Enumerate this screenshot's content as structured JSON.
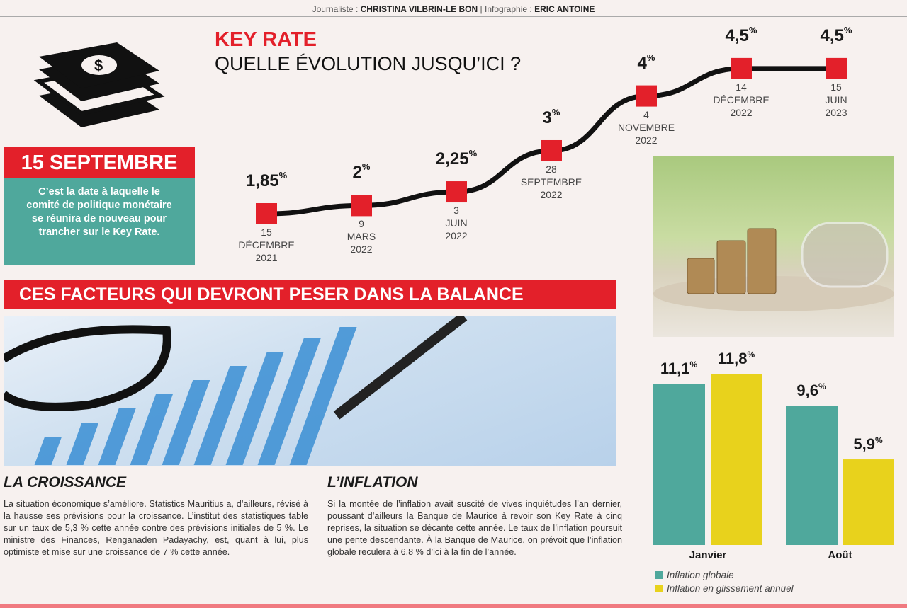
{
  "credits": {
    "journalist_label": "Journaliste :",
    "journalist": "CHRISTINA VILBRIN-LE BON",
    "sep": "|",
    "infographie_label": "Infographie :",
    "infographie": "ERIC ANTOINE"
  },
  "key_rate": {
    "title": "KEY RATE",
    "subtitle": "QUELLE ÉVOLUTION JUSQU’ICI ?"
  },
  "callout": {
    "heading": "15 SEPTEMBRE",
    "text": "C’est la date à laquelle le comité de politique monétaire se réunira de nouveau pour trancher sur le Key Rate."
  },
  "factors_banner": "CES FACTEURS QUI DEVRONT PESER DANS LA BALANCE",
  "croissance": {
    "title": "LA CROISSANCE",
    "text": "La situation économique s’améliore. Statistics Mauritius a, d’ailleurs, révisé à la hausse ses prévisions pour la croissance. L’institut des statistiques table sur un taux de 5,3 % cette année contre des prévisions initiales de 5 %. Le ministre des Finances, Renganaden Padayachy, est, quant à lui, plus optimiste et mise sur une croissance de 7 % cette année."
  },
  "inflation": {
    "title": "L’INFLATION",
    "text": "Si la montée de l’inflation avait suscité de vives inquiétudes l’an dernier, poussant d’ailleurs la Banque de Maurice à revoir son Key Rate à cinq reprises, la situation se décante cette année. Le taux de l’inflation poursuit une pente descendante. À la Banque de Maurice, on prévoit que l’inflation globale reculera à 6,8 % d’ici à la fin de l’année."
  },
  "icons": {
    "money": "money-stack-icon"
  },
  "colors": {
    "red": "#e3202a",
    "teal": "#4fa89c",
    "yellow": "#e8d21c"
  },
  "chart_data": [
    {
      "type": "line",
      "title": "KEY RATE",
      "x": [
        "15 DÉCEMBRE 2021",
        "9 MARS 2022",
        "3 JUIN 2022",
        "28 SEPTEMBRE 2022",
        "4 NOVEMBRE 2022",
        "14 DÉCEMBRE 2022",
        "15 JUIN 2023"
      ],
      "x_lines": [
        [
          "15",
          "DÉCEMBRE",
          "2021"
        ],
        [
          "9",
          "MARS",
          "2022"
        ],
        [
          "3",
          "JUIN",
          "2022"
        ],
        [
          "28",
          "SEPTEMBRE",
          "2022"
        ],
        [
          "4",
          "NOVEMBRE",
          "2022"
        ],
        [
          "14",
          "DÉCEMBRE",
          "2022"
        ],
        [
          "15",
          "JUIN",
          "2023"
        ]
      ],
      "values": [
        1.85,
        2,
        2.25,
        3,
        4,
        4.5,
        4.5
      ],
      "labels": [
        "1,85",
        "2",
        "2,25",
        "3",
        "4",
        "4,5",
        "4,5"
      ],
      "unit": "%",
      "grid": false
    },
    {
      "type": "bar",
      "categories": [
        "Janvier",
        "Août"
      ],
      "series": [
        {
          "name": "Inflation globale",
          "values": [
            11.1,
            9.6
          ],
          "labels": [
            "11,1",
            "9,6"
          ],
          "color": "#4fa89c"
        },
        {
          "name": "Inflation en glissement annuel",
          "values": [
            11.8,
            5.9
          ],
          "labels": [
            "11,8",
            "5,9"
          ],
          "color": "#e8d21c"
        }
      ],
      "unit": "%",
      "legend": "bottom-left",
      "grid": false
    }
  ]
}
